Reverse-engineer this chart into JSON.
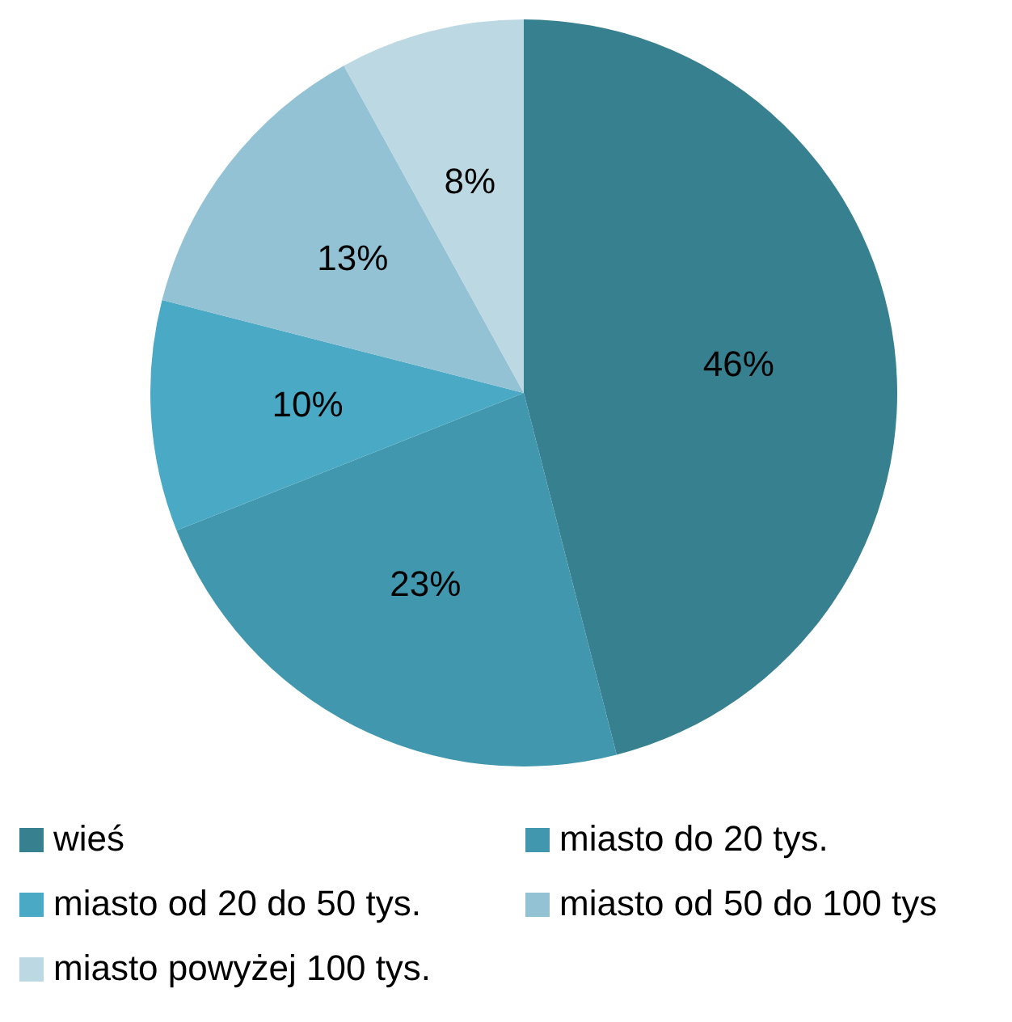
{
  "chart_data": {
    "type": "pie",
    "categories": [
      "wieś",
      "miasto do 20 tys.",
      "miasto od 20 do 50 tys.",
      "miasto od 50 do 100 tys",
      "miasto powyżej 100 tys."
    ],
    "values": [
      46,
      23,
      10,
      13,
      8
    ],
    "colors": [
      "#37808f",
      "#4097ae",
      "#4aaac5",
      "#93c2d4",
      "#bcd8e3"
    ],
    "value_labels": [
      "46%",
      "23%",
      "10%",
      "13%",
      "8%"
    ],
    "legend": "bottom"
  }
}
